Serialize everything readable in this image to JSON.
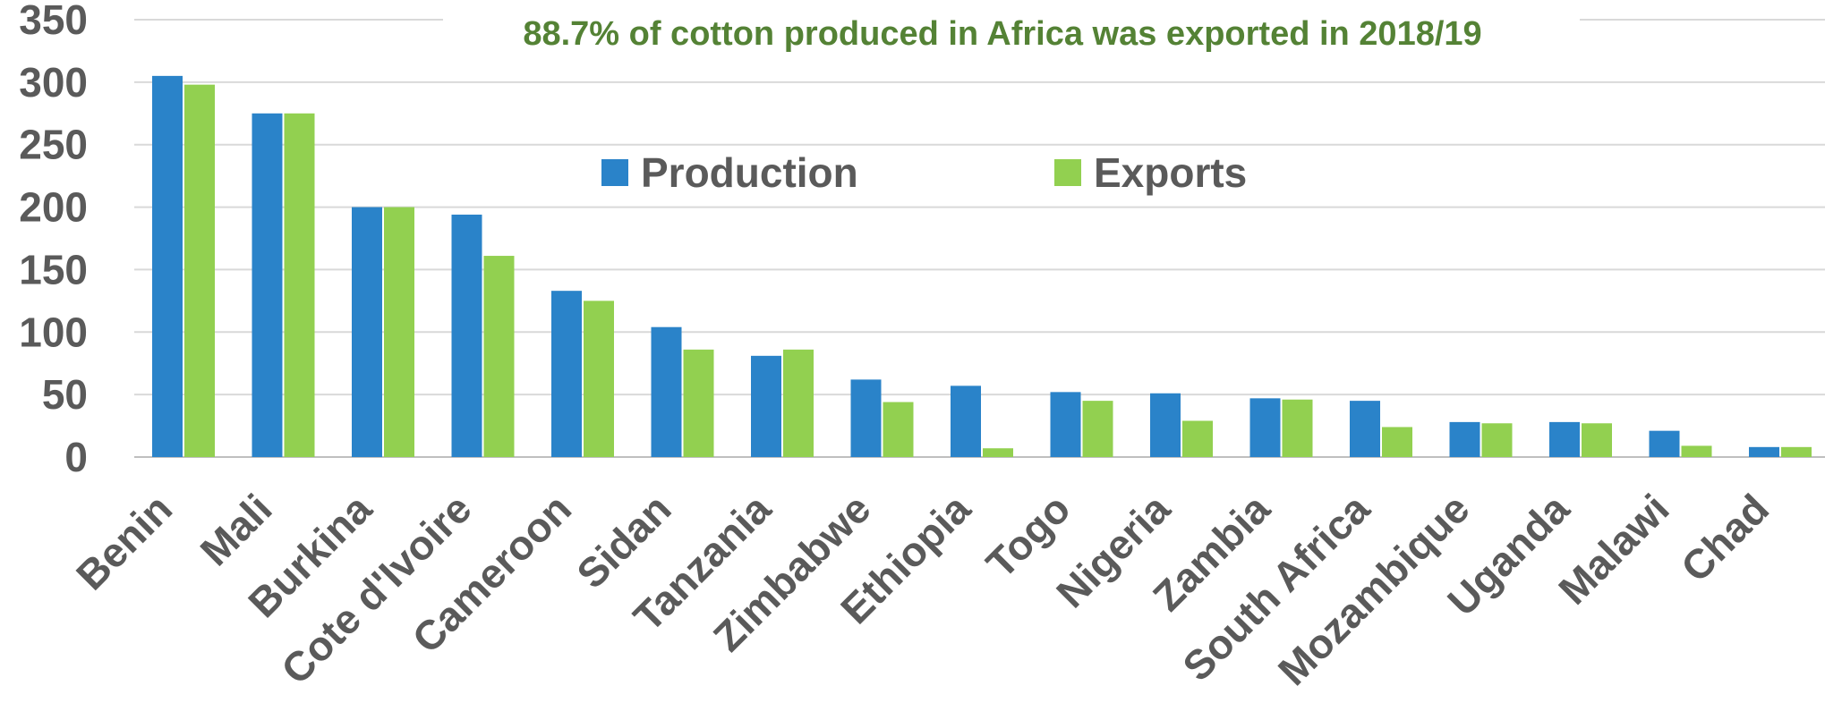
{
  "chart_data": {
    "type": "bar",
    "title": "88.7% of cotton produced in Africa was exported in 2018/19",
    "xlabel": "",
    "ylabel": "",
    "ylim": [
      0,
      350
    ],
    "yticks": [
      "0",
      "50",
      "100",
      "150",
      "200",
      "250",
      "300",
      "350"
    ],
    "grid": true,
    "legend_position": "top-center",
    "categories": [
      "Benin",
      "Mali",
      "Burkina",
      "Cote d'Ivoire",
      "Cameroon",
      "Sidan",
      "Tanzania",
      "Zimbabwe",
      "Ethiopia",
      "Togo",
      "Nigeria",
      "Zambia",
      "South Africa",
      "Mozambique",
      "Uganda",
      "Malawi",
      "Chad"
    ],
    "series": [
      {
        "name": "Production",
        "color": "#2a83c9",
        "values": [
          305,
          275,
          200,
          194,
          133,
          104,
          81,
          62,
          57,
          52,
          51,
          47,
          45,
          28,
          28,
          21,
          8
        ]
      },
      {
        "name": "Exports",
        "color": "#92d050",
        "values": [
          298,
          275,
          200,
          161,
          125,
          86,
          86,
          44,
          7,
          45,
          29,
          46,
          24,
          27,
          27,
          9,
          8
        ]
      }
    ],
    "title_color": "#548235"
  }
}
